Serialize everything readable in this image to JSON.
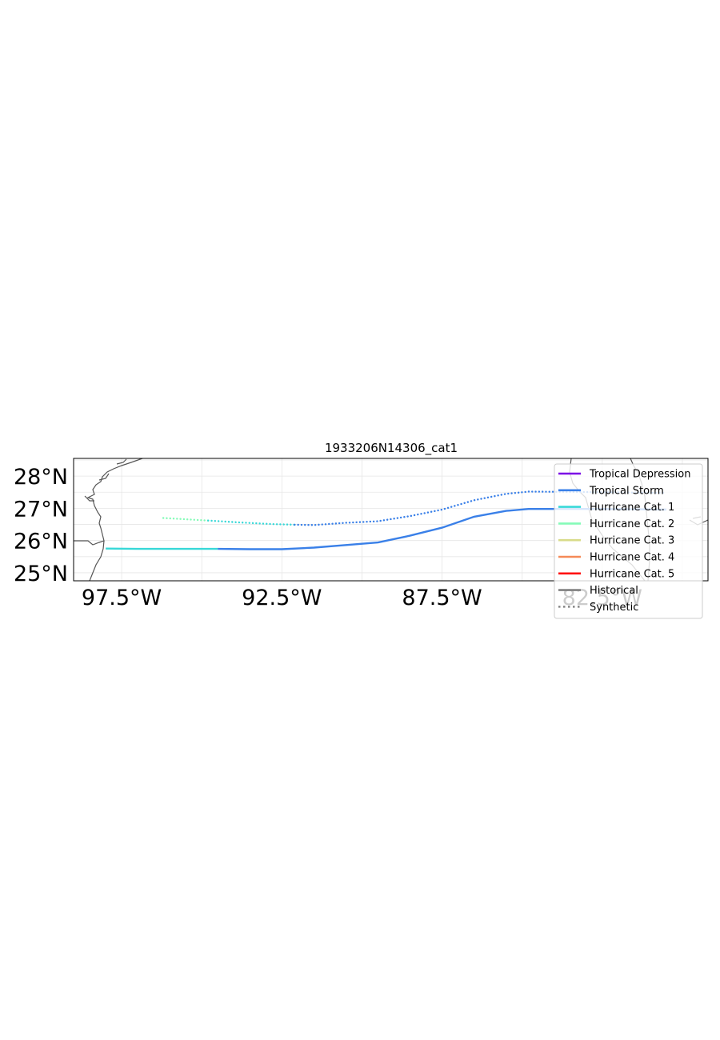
{
  "chart_data": {
    "type": "line",
    "title": "1933206N14306_cat1",
    "xlim": [
      -99.0,
      -79.2
    ],
    "ylim": [
      24.75,
      28.55
    ],
    "grid": true,
    "x_tick_labels": [
      {
        "value": -97.5,
        "label": "97.5°W"
      },
      {
        "value": -92.5,
        "label": "92.5°W"
      },
      {
        "value": -87.5,
        "label": "87.5°W"
      },
      {
        "value": -82.5,
        "label": "82.5°W"
      }
    ],
    "y_tick_labels": [
      {
        "value": 25,
        "label": "25°N"
      },
      {
        "value": 26,
        "label": "26°N"
      },
      {
        "value": 27,
        "label": "27°N"
      },
      {
        "value": 28,
        "label": "28°N"
      }
    ],
    "legend_position": "top-right",
    "legend": [
      {
        "label": "Tropical Depression",
        "color": "#7b00e6",
        "style": "solid"
      },
      {
        "label": "Tropical Storm",
        "color": "#3a80e8",
        "style": "solid"
      },
      {
        "label": "Hurricane Cat. 1",
        "color": "#38d8d8",
        "style": "solid"
      },
      {
        "label": "Hurricane Cat. 2",
        "color": "#85fbb8",
        "style": "solid"
      },
      {
        "label": "Hurricane Cat. 3",
        "color": "#d8dc8a",
        "style": "solid"
      },
      {
        "label": "Hurricane Cat. 4",
        "color": "#f58a58",
        "style": "solid"
      },
      {
        "label": "Hurricane Cat. 5",
        "color": "#ff1010",
        "style": "solid"
      },
      {
        "label": "Historical",
        "color": "#808080",
        "style": "solid"
      },
      {
        "label": "Synthetic",
        "color": "#808080",
        "style": "dotted"
      }
    ],
    "series": [
      {
        "kind": "historical",
        "category": "Hurricane Cat. 1",
        "color": "#38d8d8",
        "points": [
          [
            -98.0,
            25.75
          ],
          [
            -97.0,
            25.74
          ],
          [
            -96.0,
            25.74
          ],
          [
            -95.0,
            25.74
          ],
          [
            -94.5,
            25.74
          ]
        ]
      },
      {
        "kind": "historical",
        "category": "Tropical Storm",
        "color": "#3a80e8",
        "points": [
          [
            -94.5,
            25.74
          ],
          [
            -93.5,
            25.73
          ],
          [
            -92.5,
            25.73
          ],
          [
            -91.5,
            25.78
          ],
          [
            -90.5,
            25.86
          ],
          [
            -89.5,
            25.94
          ],
          [
            -88.5,
            26.15
          ],
          [
            -87.5,
            26.4
          ],
          [
            -86.5,
            26.74
          ],
          [
            -85.5,
            26.92
          ],
          [
            -84.8,
            26.98
          ],
          [
            -83.5,
            26.98
          ],
          [
            -82.5,
            26.98
          ],
          [
            -81.5,
            26.97
          ],
          [
            -80.5,
            26.96
          ]
        ]
      },
      {
        "kind": "synthetic",
        "category": "Hurricane Cat. 2",
        "color": "#85fbb8",
        "points": [
          [
            -96.2,
            26.7
          ],
          [
            -95.5,
            26.66
          ],
          [
            -94.8,
            26.62
          ]
        ]
      },
      {
        "kind": "synthetic",
        "category": "Hurricane Cat. 1",
        "color": "#38d8d8",
        "points": [
          [
            -94.8,
            26.62
          ],
          [
            -93.8,
            26.56
          ],
          [
            -92.8,
            26.51
          ],
          [
            -92.1,
            26.49
          ]
        ]
      },
      {
        "kind": "synthetic",
        "category": "Tropical Storm",
        "color": "#3a80e8",
        "points": [
          [
            -92.1,
            26.49
          ],
          [
            -91.5,
            26.48
          ],
          [
            -90.5,
            26.55
          ],
          [
            -89.5,
            26.6
          ],
          [
            -88.5,
            26.76
          ],
          [
            -87.5,
            26.96
          ],
          [
            -86.5,
            27.25
          ],
          [
            -85.5,
            27.45
          ],
          [
            -84.8,
            27.52
          ],
          [
            -83.5,
            27.51
          ],
          [
            -82.5,
            27.5
          ],
          [
            -81.5,
            27.49
          ],
          [
            -80.5,
            27.48
          ]
        ]
      }
    ]
  }
}
